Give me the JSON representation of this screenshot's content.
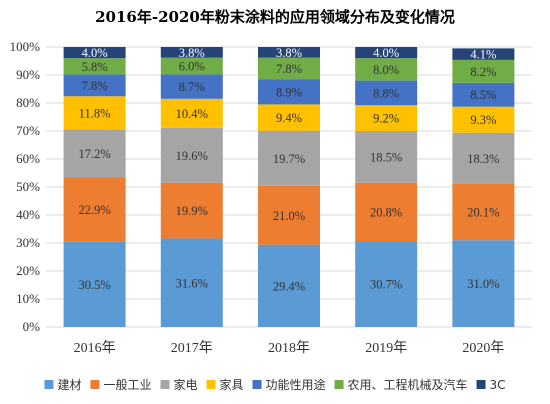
{
  "chart_data": {
    "type": "bar",
    "stacked": true,
    "percent": true,
    "title": "2016年-2020年粉末涂料的应用领域分布及变化情况",
    "categories": [
      "2016年",
      "2017年",
      "2018年",
      "2019年",
      "2020年"
    ],
    "ylim": [
      0,
      100
    ],
    "yticks": [
      "0%",
      "10%",
      "20%",
      "30%",
      "40%",
      "50%",
      "60%",
      "70%",
      "80%",
      "90%",
      "100%"
    ],
    "grid": true,
    "legend_position": "bottom",
    "series": [
      {
        "name": "建材",
        "color": "#5B9BD5",
        "values": [
          30.5,
          31.6,
          29.4,
          30.7,
          31.0
        ],
        "labels": [
          "30.5%",
          "31.6%",
          "29.4%",
          "30.7%",
          "31.0%"
        ]
      },
      {
        "name": "一般工业",
        "color": "#ED7D31",
        "values": [
          22.9,
          19.9,
          21.0,
          20.8,
          20.1
        ],
        "labels": [
          "22.9%",
          "19.9%",
          "21.0%",
          "20.8%",
          "20.1%"
        ]
      },
      {
        "name": "家电",
        "color": "#A5A5A5",
        "values": [
          17.2,
          19.6,
          19.7,
          18.5,
          18.3
        ],
        "labels": [
          "17.2%",
          "19.6%",
          "19.7%",
          "18.5%",
          "18.3%"
        ]
      },
      {
        "name": "家具",
        "color": "#FFC000",
        "values": [
          11.8,
          10.4,
          9.4,
          9.2,
          9.3
        ],
        "labels": [
          "11.8%",
          "10.4%",
          "9.4%",
          "9.2%",
          "9.3%"
        ]
      },
      {
        "name": "功能性用途",
        "color": "#4472C4",
        "values": [
          7.8,
          8.7,
          8.9,
          8.8,
          8.5
        ],
        "labels": [
          "7.8%",
          "8.7%",
          "8.9%",
          "8.8%",
          "8.5%"
        ]
      },
      {
        "name": "农用、工程机械及汽车",
        "color": "#70AD47",
        "values": [
          5.8,
          6.0,
          7.8,
          8.0,
          8.2
        ],
        "labels": [
          "5.8%",
          "6.0%",
          "7.8%",
          "8.0%",
          "8.2%"
        ]
      },
      {
        "name": "3C",
        "color": "#264478",
        "values": [
          4.0,
          3.8,
          3.8,
          4.0,
          4.1
        ],
        "labels": [
          "4.0%",
          "3.8%",
          "3.8%",
          "4.0%",
          "4.1%"
        ]
      }
    ]
  }
}
